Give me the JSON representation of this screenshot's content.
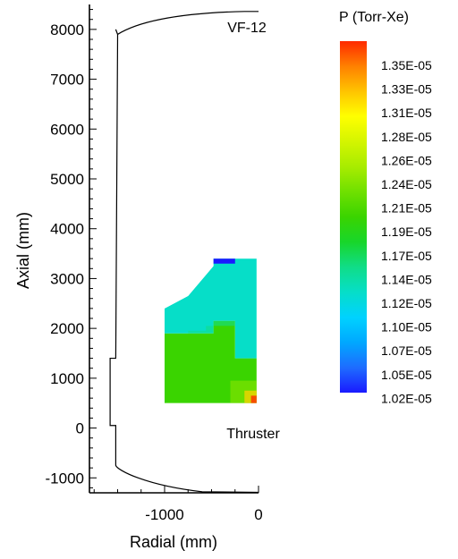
{
  "chart_data": {
    "type": "contour",
    "xlabel": "Radial (mm)",
    "ylabel": "Axial (mm)",
    "xlim": [
      -1800,
      0
    ],
    "ylim": [
      -1300,
      8500
    ],
    "x_ticks": [
      -1000,
      0
    ],
    "x_tick_labels": [
      "-1000",
      "0"
    ],
    "y_ticks": [
      -1000,
      0,
      1000,
      2000,
      3000,
      4000,
      5000,
      6000,
      7000,
      8000
    ],
    "y_tick_labels": [
      "-1000",
      "0",
      "1000",
      "2000",
      "3000",
      "4000",
      "5000",
      "6000",
      "7000",
      "8000"
    ],
    "annotations": [
      {
        "text": "VF-12",
        "x": -120,
        "y": 8000
      },
      {
        "text": "Thruster",
        "x": -120,
        "y": 0
      }
    ],
    "legend": {
      "title": "P (Torr-Xe)",
      "levels": [
        "1.35E-05",
        "1.33E-05",
        "1.31E-05",
        "1.28E-05",
        "1.26E-05",
        "1.24E-05",
        "1.21E-05",
        "1.19E-05",
        "1.17E-05",
        "1.14E-05",
        "1.12E-05",
        "1.10E-05",
        "1.07E-05",
        "1.05E-05",
        "1.02E-05"
      ],
      "colors": [
        "#ff2a00",
        "#ff8000",
        "#ffc400",
        "#ffff00",
        "#d4f500",
        "#a8ec00",
        "#6fe000",
        "#3ad400",
        "#18d62a",
        "#10dd88",
        "#06dec8",
        "#00d2ff",
        "#00a8ff",
        "#1e6cff",
        "#1a1aff"
      ]
    },
    "chamber_outline": [
      [
        -1520,
        8000
      ],
      [
        -1500,
        7900
      ],
      [
        -1200,
        8250
      ],
      [
        -600,
        8340
      ],
      [
        -150,
        8360
      ],
      [
        0,
        8360
      ],
      [
        -1520,
        1400
      ],
      [
        -1580,
        1400
      ],
      [
        -1580,
        50
      ],
      [
        -1520,
        50
      ],
      [
        -1520,
        -750
      ],
      [
        -1500,
        -850
      ],
      [
        -1200,
        -1150
      ],
      [
        -600,
        -1280
      ],
      [
        -150,
        -1290
      ],
      [
        0,
        -1290
      ]
    ],
    "pressure_field": {
      "region": [
        [
          -1000,
          500
        ],
        [
          -1000,
          2400
        ],
        [
          -750,
          2650
        ],
        [
          -480,
          3250
        ],
        [
          -480,
          3400
        ],
        [
          -20,
          3400
        ],
        [
          -20,
          500
        ]
      ],
      "bands": [
        {
          "value": "1.19E-05",
          "polygon": [
            [
              -1000,
              500
            ],
            [
              -1000,
              1900
            ],
            [
              -480,
              1900
            ],
            [
              -480,
              2150
            ],
            [
              -250,
              2150
            ],
            [
              -250,
              1400
            ],
            [
              -20,
              1400
            ],
            [
              -20,
              500
            ]
          ]
        },
        {
          "value": "1.12E-05",
          "polygon": [
            [
              -1000,
              1900
            ],
            [
              -1000,
              2400
            ],
            [
              -750,
              2650
            ],
            [
              -480,
              3250
            ],
            [
              -480,
              3400
            ],
            [
              -20,
              3400
            ],
            [
              -20,
              1400
            ],
            [
              -250,
              1400
            ],
            [
              -250,
              2150
            ],
            [
              -480,
              2150
            ],
            [
              -480,
              1900
            ]
          ]
        },
        {
          "value": "1.02E-05",
          "polygon": [
            [
              -480,
              3300
            ],
            [
              -480,
              3400
            ],
            [
              -250,
              3400
            ],
            [
              -250,
              3300
            ]
          ]
        },
        {
          "value": "1.31E-05",
          "polygon": [
            [
              -150,
              500
            ],
            [
              -150,
              750
            ],
            [
              -20,
              750
            ],
            [
              -20,
              500
            ]
          ]
        }
      ]
    }
  }
}
